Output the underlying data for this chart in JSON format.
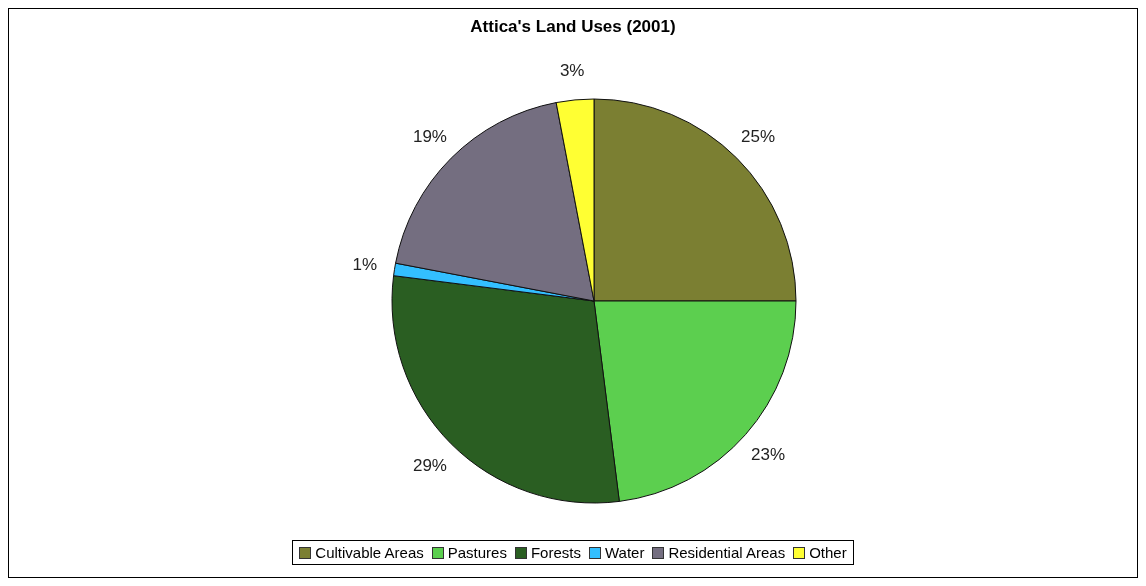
{
  "chart_data": {
    "type": "pie",
    "title": "Attica's Land Uses (2001)",
    "categories": [
      "Cultivable Areas",
      "Pastures",
      "Forests",
      "Water",
      "Residential Areas",
      "Other"
    ],
    "values": [
      25,
      23,
      29,
      1,
      19,
      3
    ],
    "colors": [
      "#7b7f32",
      "#5ccf4f",
      "#2a5e22",
      "#33bfff",
      "#746e80",
      "#ffff33"
    ],
    "value_labels": [
      "25%",
      "23%",
      "29%",
      "1%",
      "19%",
      "3%"
    ],
    "legend": "bottom"
  }
}
